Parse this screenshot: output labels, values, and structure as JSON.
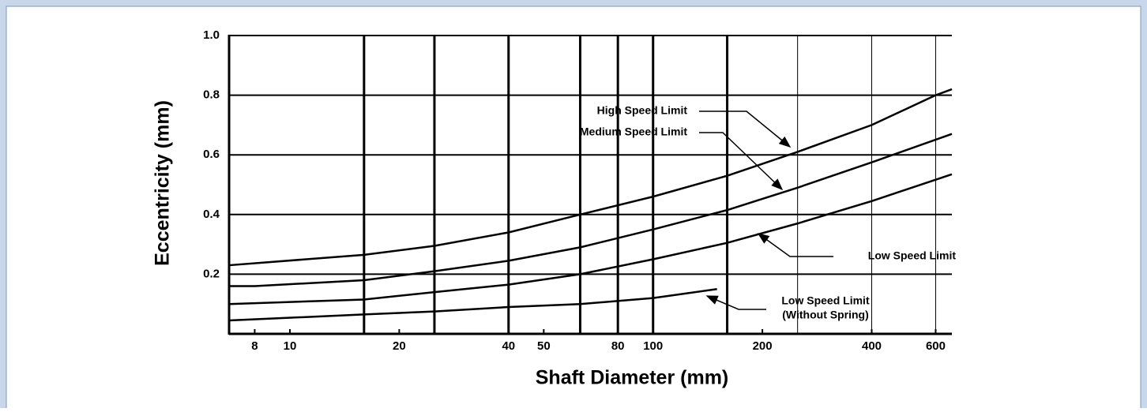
{
  "chart_data": {
    "type": "line",
    "x_label": "Shaft Diameter  (mm)",
    "y_label": "Eccentricity (mm)",
    "xscale": "log",
    "xlim": [
      6.8,
      665
    ],
    "ylim": [
      0,
      1
    ],
    "xticks": [
      8,
      10,
      20,
      40,
      50,
      80,
      100,
      200,
      400,
      600
    ],
    "yticks": [
      0.2,
      0.4,
      0.6,
      0.8,
      {
        "value": 1,
        "label": "1.0"
      }
    ],
    "xgrid": [
      16,
      25,
      40,
      63,
      80,
      100,
      160
    ],
    "xgrid_minor": [
      250,
      400,
      600
    ],
    "grid": true,
    "series": [
      {
        "name": "High Speed Limit",
        "color": "#000000",
        "x": [
          6.8,
          16,
          25,
          40,
          63,
          100,
          160,
          250,
          400,
          600,
          665
        ],
        "values": [
          0.23,
          0.265,
          0.295,
          0.34,
          0.4,
          0.46,
          0.53,
          0.61,
          0.7,
          0.8,
          0.82
        ]
      },
      {
        "name": "Medium Speed Limit",
        "color": "#000000",
        "x": [
          6.8,
          8,
          16,
          25,
          40,
          63,
          100,
          160,
          250,
          400,
          665
        ],
        "values": [
          0.16,
          0.16,
          0.18,
          0.21,
          0.245,
          0.29,
          0.35,
          0.415,
          0.49,
          0.575,
          0.67
        ]
      },
      {
        "name": "Low Speed Limit",
        "color": "#000000",
        "x": [
          6.8,
          16,
          25,
          40,
          63,
          100,
          160,
          250,
          400,
          665
        ],
        "values": [
          0.1,
          0.115,
          0.14,
          0.165,
          0.2,
          0.25,
          0.305,
          0.37,
          0.445,
          0.535
        ]
      },
      {
        "name": [
          "Low Speed Limit",
          "(Without Spring)"
        ],
        "color": "#000000",
        "x": [
          6.8,
          16,
          25,
          40,
          63,
          100,
          150
        ],
        "values": [
          0.045,
          0.065,
          0.075,
          0.09,
          0.1,
          0.12,
          0.15
        ]
      }
    ]
  }
}
